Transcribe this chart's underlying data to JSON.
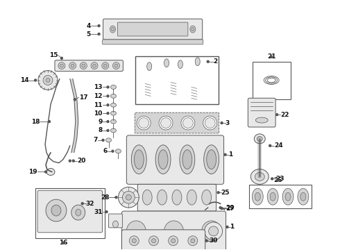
{
  "bg": "#ffffff",
  "lc": "#555555",
  "tc": "#111111",
  "fs": 6.5,
  "fig_w": 4.9,
  "fig_h": 3.6,
  "dpi": 100
}
